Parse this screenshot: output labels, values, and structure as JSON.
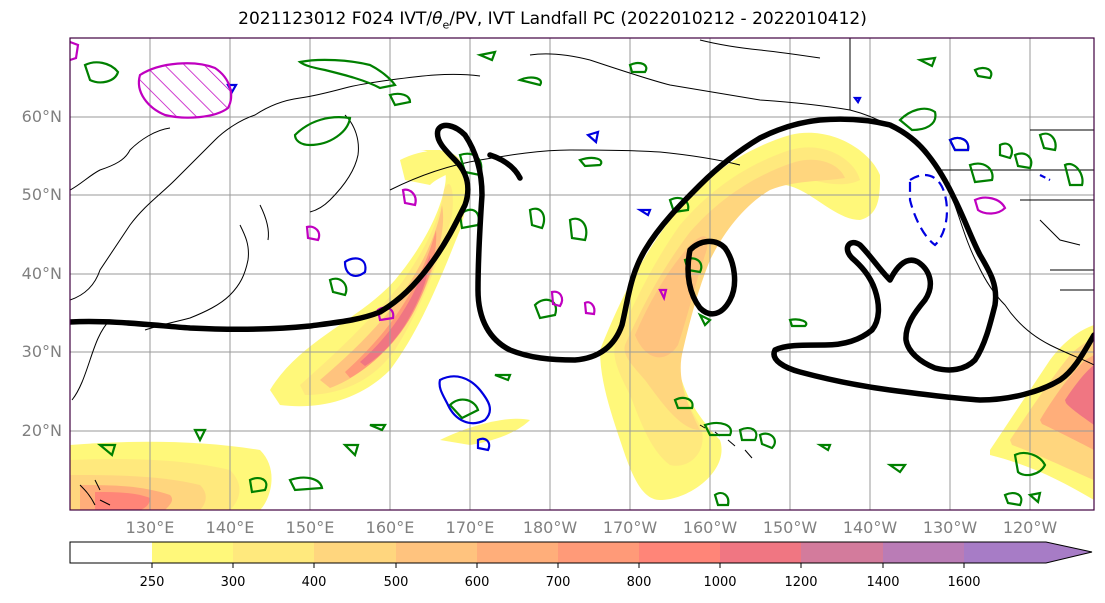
{
  "title": "2021123012 F024 IVT/θe/PV, IVT Landfall PC (2022010212 - 2022010412)",
  "title_parts": {
    "prefix": "2021123012 F024 IVT/",
    "theta": "θ",
    "sub": "e",
    "suffix": "/PV, IVT Landfall PC (2022010212 - 2022010412)"
  },
  "map": {
    "lat_labels": [
      "60°N",
      "50°N",
      "40°N",
      "30°N",
      "20°N"
    ],
    "lon_labels": [
      "130°E",
      "140°E",
      "150°E",
      "160°E",
      "170°E",
      "180°W",
      "170°W",
      "160°W",
      "150°W",
      "140°W",
      "130°W",
      "120°W"
    ],
    "colors": {
      "gridline": "#9a9a9a",
      "coast": "#000000",
      "pv": "#008000",
      "theta": "#0000e0",
      "ivt_pc": "#c000c0",
      "landfall": "#000000"
    },
    "contour_layers": [
      "coastline",
      "ivt-shading",
      "pv-contours",
      "theta-e-contours",
      "ivt-pc-contours",
      "landfall-probability-contour"
    ]
  },
  "colorbar": {
    "ticks": [
      "250",
      "300",
      "400",
      "500",
      "600",
      "700",
      "800",
      "1000",
      "1200",
      "1400",
      "1600"
    ],
    "bins": [
      {
        "range": "<250",
        "color": "#ffffff"
      },
      {
        "range": "250-300",
        "color": "#fff87a"
      },
      {
        "range": "300-400",
        "color": "#ffe97d"
      },
      {
        "range": "400-500",
        "color": "#ffd67e"
      },
      {
        "range": "500-600",
        "color": "#ffc37e"
      },
      {
        "range": "600-700",
        "color": "#ffae7a"
      },
      {
        "range": "700-800",
        "color": "#ff9a78"
      },
      {
        "range": "800-1000",
        "color": "#ff8578"
      },
      {
        "range": "1000-1200",
        "color": "#f07682"
      },
      {
        "range": "1200-1400",
        "color": "#d37b9c"
      },
      {
        "range": "1400-1600",
        "color": "#ba7cb6"
      },
      {
        "range": ">1600",
        "color": "#a77cc6"
      }
    ]
  }
}
